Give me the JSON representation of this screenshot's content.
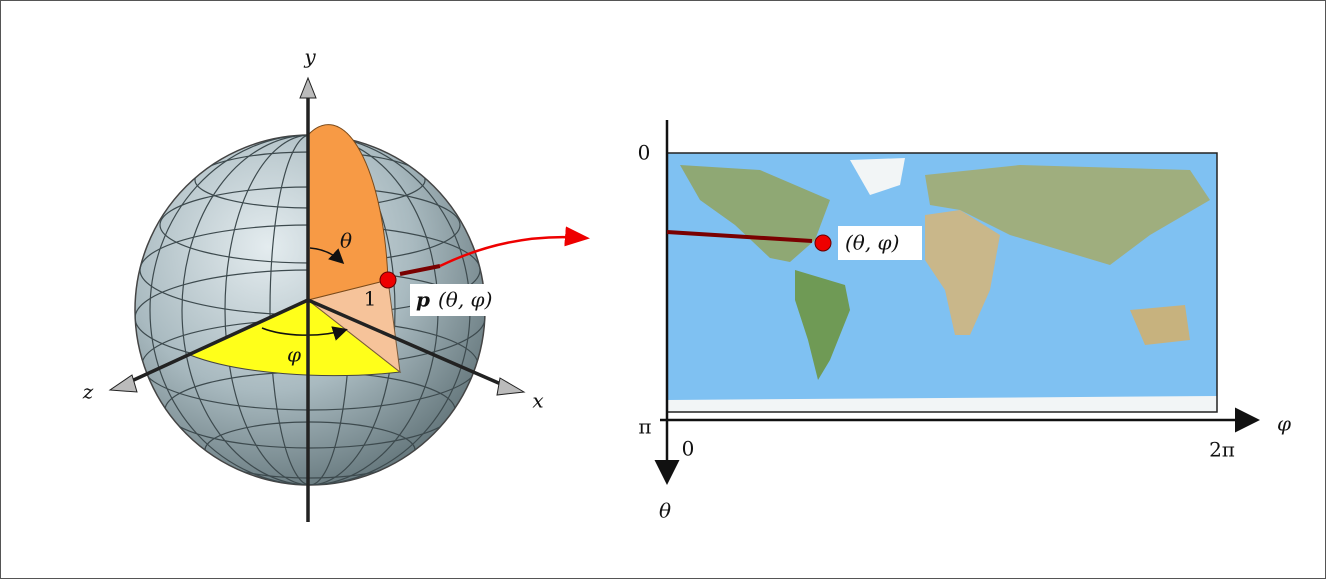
{
  "sphere": {
    "axes": {
      "y": "y",
      "x": "x",
      "z": "z"
    },
    "angles": {
      "theta": "θ",
      "phi": "φ"
    },
    "radius": "1",
    "point": {
      "name": "p",
      "coords": "(θ, φ)"
    }
  },
  "map": {
    "point_label": "(θ, φ)",
    "theta_ticks": [
      "0",
      "π"
    ],
    "phi_ticks": [
      "0",
      "2π"
    ],
    "phi_label": "φ",
    "theta_label": "θ"
  }
}
